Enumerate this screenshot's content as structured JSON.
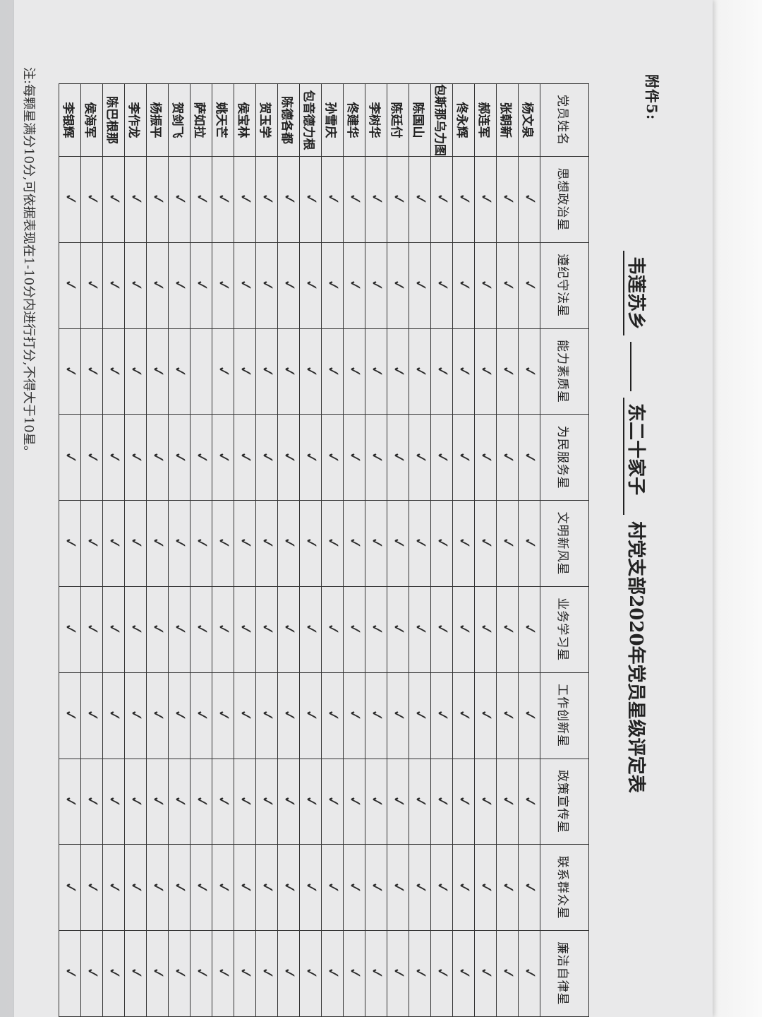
{
  "annex_label": "附件5:",
  "title": {
    "township": "韦莲苏乡",
    "village": "东二十家子",
    "suffix": "村党支部2020年党员星级评定表"
  },
  "columns": [
    "党员姓名",
    "思想政治星",
    "遵纪守法星",
    "能力素质星",
    "为民服务星",
    "文明新风星",
    "业务学习星",
    "工作创新星",
    "政策宣传星",
    "联系群众星",
    "廉洁自律星"
  ],
  "check_symbol": "✓",
  "rows": [
    {
      "name": "杨文泉",
      "checks": [
        1,
        1,
        1,
        1,
        1,
        1,
        1,
        1,
        1,
        1
      ]
    },
    {
      "name": "张朝新",
      "checks": [
        1,
        1,
        1,
        1,
        1,
        1,
        1,
        1,
        1,
        1
      ]
    },
    {
      "name": "郝连军",
      "checks": [
        1,
        1,
        1,
        1,
        1,
        1,
        1,
        1,
        1,
        1
      ]
    },
    {
      "name": "佟永辉",
      "checks": [
        1,
        1,
        1,
        1,
        1,
        1,
        1,
        1,
        1,
        1
      ]
    },
    {
      "name": "包斯那乌力图",
      "checks": [
        1,
        1,
        1,
        1,
        1,
        1,
        1,
        1,
        1,
        1
      ]
    },
    {
      "name": "陈国山",
      "checks": [
        1,
        1,
        1,
        1,
        1,
        1,
        1,
        1,
        1,
        1
      ]
    },
    {
      "name": "陈廷付",
      "checks": [
        1,
        1,
        1,
        1,
        1,
        1,
        1,
        1,
        1,
        1
      ]
    },
    {
      "name": "李树华",
      "checks": [
        1,
        1,
        1,
        1,
        1,
        1,
        1,
        1,
        1,
        1
      ]
    },
    {
      "name": "佟建华",
      "checks": [
        1,
        1,
        1,
        1,
        1,
        1,
        1,
        1,
        1,
        1
      ]
    },
    {
      "name": "孙雪庆",
      "checks": [
        1,
        1,
        1,
        1,
        1,
        1,
        1,
        1,
        1,
        1
      ]
    },
    {
      "name": "包音德力根",
      "checks": [
        1,
        1,
        1,
        1,
        1,
        1,
        1,
        1,
        1,
        1
      ]
    },
    {
      "name": "陈德各都",
      "checks": [
        1,
        1,
        1,
        1,
        1,
        1,
        1,
        1,
        1,
        1
      ]
    },
    {
      "name": "贺玉学",
      "checks": [
        1,
        1,
        1,
        1,
        1,
        1,
        1,
        1,
        1,
        1
      ]
    },
    {
      "name": "侯宝林",
      "checks": [
        1,
        1,
        1,
        1,
        1,
        1,
        1,
        1,
        1,
        1
      ]
    },
    {
      "name": "姚天芒",
      "checks": [
        1,
        1,
        1,
        1,
        1,
        1,
        1,
        1,
        1,
        1
      ]
    },
    {
      "name": "萨如拉",
      "checks": [
        1,
        1,
        0,
        1,
        1,
        1,
        1,
        1,
        1,
        1
      ]
    },
    {
      "name": "贺剑飞",
      "checks": [
        1,
        1,
        1,
        1,
        1,
        1,
        1,
        1,
        1,
        1
      ]
    },
    {
      "name": "杨振平",
      "checks": [
        1,
        1,
        1,
        1,
        1,
        1,
        1,
        1,
        1,
        1
      ]
    },
    {
      "name": "李作龙",
      "checks": [
        1,
        1,
        1,
        1,
        1,
        1,
        1,
        1,
        1,
        1
      ]
    },
    {
      "name": "陈巴根那",
      "checks": [
        1,
        1,
        1,
        1,
        1,
        1,
        1,
        1,
        1,
        1
      ]
    },
    {
      "name": "侯海军",
      "checks": [
        1,
        1,
        1,
        1,
        1,
        1,
        1,
        1,
        1,
        1
      ]
    },
    {
      "name": "李银辉",
      "checks": [
        1,
        1,
        1,
        1,
        1,
        1,
        1,
        1,
        1,
        1
      ]
    }
  ],
  "note": "注:每颗星满分10分,可依据表现在1-10分内进行打分,不得大于10星。"
}
